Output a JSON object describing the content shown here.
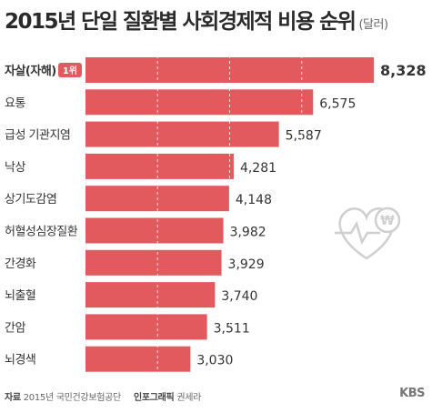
{
  "title": "2015년 단일 질환별 사회경제적 비용 순위",
  "unit": "(달러)",
  "badge": "1위",
  "currency_symbol": "₩",
  "footer": {
    "source_label": "자료",
    "source_text": "2015년 국민건강보험공단",
    "graphic_label": "인포그래픽",
    "graphic_author": "권세라"
  },
  "logo": "KBS",
  "colors": {
    "bar": "#e35a5e",
    "badge": "#e35a5e",
    "icon": "#cfcfcf"
  },
  "chart_data": {
    "type": "bar",
    "orientation": "horizontal",
    "categories": [
      "자살(자해)",
      "요통",
      "급성 기관지염",
      "낙상",
      "상기도감염",
      "허혈성심장질환",
      "간경화",
      "뇌출혈",
      "간암",
      "뇌경색"
    ],
    "values": [
      8328,
      6575,
      5587,
      4281,
      4148,
      3982,
      3929,
      3740,
      3511,
      3030
    ],
    "value_labels": [
      "8,328",
      "6,575",
      "5,587",
      "4,281",
      "4,148",
      "3,982",
      "3,929",
      "3,740",
      "3,511",
      "3,030"
    ],
    "xlim": [
      0,
      8328
    ],
    "grid": true
  }
}
